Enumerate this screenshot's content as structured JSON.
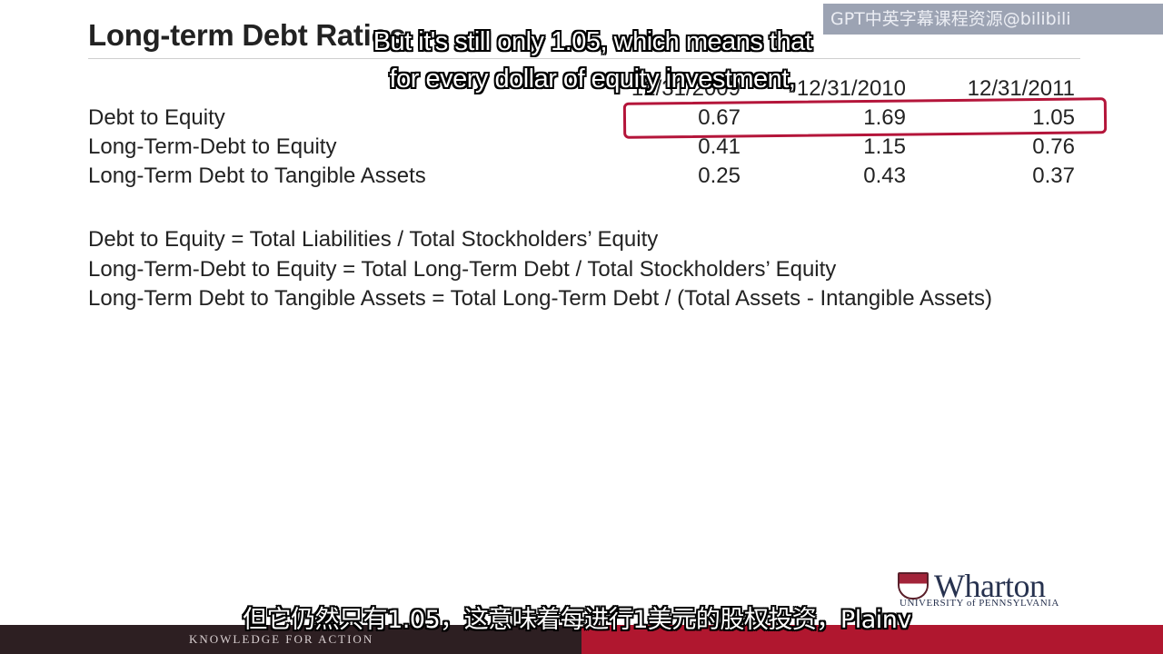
{
  "slide": {
    "title": "Long-term Debt Ratios",
    "watermark": "GPT中英字幕课程资源@bilibili",
    "subtitles": {
      "en_line1": "But it's still only 1.05, which means that",
      "en_line2": "for every dollar of equity investment,",
      "zh_line": "但它仍然只有1.05，这意味着每进行1美元的股权投资，Plainv"
    },
    "table": {
      "headers": [
        "12/31/2009",
        "12/31/2010",
        "12/31/2011"
      ],
      "rows": [
        {
          "label": "Debt to Equity",
          "values": [
            "0.67",
            "1.69",
            "1.05"
          ]
        },
        {
          "label": "Long-Term-Debt to Equity",
          "values": [
            "0.41",
            "1.15",
            "0.76"
          ]
        },
        {
          "label": "Long-Term Debt to Tangible Assets",
          "values": [
            "0.25",
            "0.43",
            "0.37"
          ]
        }
      ]
    },
    "formulas": [
      "Debt to Equity = Total Liabilities / Total Stockholders’ Equity",
      "Long-Term-Debt to Equity = Total Long-Term Debt / Total Stockholders’ Equity",
      "Long-Term Debt to Tangible Assets = Total Long-Term Debt / (Total Assets - Intangible Assets)"
    ],
    "logo": {
      "name": "Wharton",
      "subtitle": "UNIVERSITY of PENNSYLVANIA"
    },
    "footer": {
      "tagline": "KNOWLEDGE FOR ACTION"
    },
    "colors": {
      "highlight": "#b4153a",
      "footer_dark": "#2d1f22",
      "footer_red": "#b0172f",
      "logo_navy": "#27324f"
    }
  }
}
